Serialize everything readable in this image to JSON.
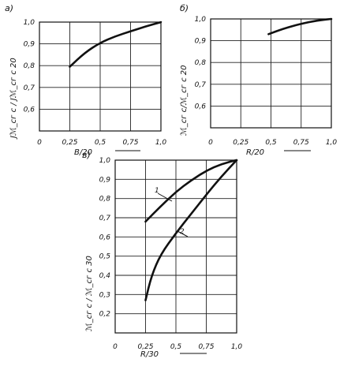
{
  "chart_data": [
    {
      "panel": "а)",
      "type": "line",
      "xlabel": "B/20",
      "ylabel": "Jℳ_сг с / Jℳ_сг с 20",
      "xlim": [
        0,
        1.0
      ],
      "ylim": [
        0.5,
        1.0
      ],
      "x_ticks": [
        "0",
        "0,25",
        "0,5",
        "0,75",
        "1,0"
      ],
      "y_ticks": [
        "0,6",
        "0,7",
        "0,8",
        "0,9",
        "1,0"
      ],
      "grid": true,
      "series": [
        {
          "x": [
            0.25,
            0.375,
            0.5,
            0.625,
            0.75,
            0.875,
            1.0
          ],
          "y": [
            0.795,
            0.86,
            0.905,
            0.935,
            0.958,
            0.98,
            1.0
          ]
        }
      ]
    },
    {
      "panel": "б)",
      "type": "line",
      "xlabel": "R/20",
      "ylabel": "ℳ_сг с/ℳ_сг с 20",
      "xlim": [
        0,
        1.0
      ],
      "ylim": [
        0.5,
        1.0
      ],
      "x_ticks": [
        "0",
        "0,25",
        "0,5",
        "0,75",
        "1,0"
      ],
      "y_ticks": [
        "0,6",
        "0,7",
        "0,8",
        "0,9",
        "1,0"
      ],
      "grid": true,
      "series": [
        {
          "x": [
            0.48,
            0.6,
            0.75,
            0.875,
            1.0
          ],
          "y": [
            0.93,
            0.955,
            0.978,
            0.992,
            1.0
          ]
        }
      ]
    },
    {
      "panel": "в)",
      "type": "line",
      "xlabel": "R/30",
      "ylabel": "ℳ_сг с / ℳ_сг с 30",
      "xlim": [
        0,
        1.0
      ],
      "ylim": [
        0.1,
        1.0
      ],
      "x_ticks": [
        "0",
        "0,25",
        "0,5",
        "0,75",
        "1,0"
      ],
      "y_ticks": [
        "0,2",
        "0,3",
        "0,4",
        "0,5",
        "0,6",
        "0,7",
        "0,8",
        "0,9",
        "1,0"
      ],
      "grid": true,
      "series": [
        {
          "name": "1",
          "x": [
            0.25,
            0.375,
            0.5,
            0.625,
            0.75,
            0.875,
            1.0
          ],
          "y": [
            0.68,
            0.76,
            0.835,
            0.895,
            0.945,
            0.98,
            1.0
          ]
        },
        {
          "name": "2",
          "x": [
            0.25,
            0.3,
            0.375,
            0.5,
            0.625,
            0.75,
            0.875,
            1.0
          ],
          "y": [
            0.27,
            0.4,
            0.51,
            0.62,
            0.72,
            0.82,
            0.915,
            1.0
          ]
        }
      ]
    }
  ]
}
